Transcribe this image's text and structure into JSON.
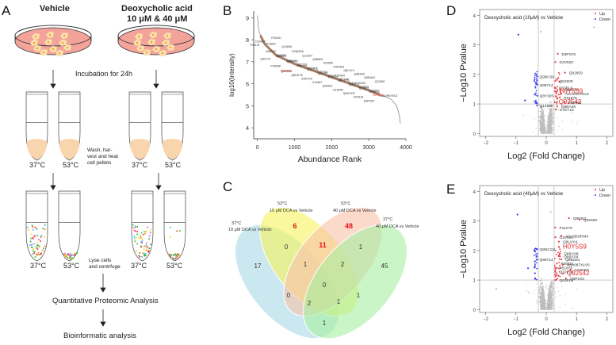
{
  "figure": {
    "panels": {
      "A": {
        "letter": "A",
        "vehicle_title": "Vehicle",
        "dca_title_line1": "Deoxycholic acid",
        "dca_title_line2": "10 μM & 40 μM",
        "step_incubation": "Incubation for 24h",
        "step_wash": [
          "Wash, har-",
          "vest and heat",
          "cell pellets"
        ],
        "step_lyse": [
          "Lyse cells",
          "and centrfuge"
        ],
        "temp_low": "37°C",
        "temp_high": "53°C",
        "step_quant": "Quantitative Proteomic Analysis",
        "step_bioinf": "Bioinformatic analysis"
      },
      "B": {
        "letter": "B"
      },
      "C": {
        "letter": "C"
      },
      "D": {
        "letter": "D"
      },
      "E": {
        "letter": "E"
      }
    }
  },
  "chart_data": [
    {
      "panel": "B",
      "type": "scatter",
      "title": "",
      "xlabel": "Abundance Rank",
      "ylabel": "log10(Intensity)",
      "xlim": [
        -100,
        4000
      ],
      "ylim": [
        3.5,
        9.3
      ],
      "xticks": [
        0,
        1000,
        2000,
        3000,
        4000
      ],
      "yticks": [
        4,
        5,
        6,
        7,
        8,
        9
      ],
      "curve": [
        [
          0,
          9.1
        ],
        [
          30,
          8.5
        ],
        [
          80,
          8.2
        ],
        [
          200,
          7.8
        ],
        [
          500,
          7.3
        ],
        [
          1000,
          6.9
        ],
        [
          1500,
          6.6
        ],
        [
          2000,
          6.3
        ],
        [
          2500,
          6.0
        ],
        [
          3000,
          5.7
        ],
        [
          3300,
          5.5
        ],
        [
          3600,
          5.3
        ],
        [
          3750,
          5.0
        ],
        [
          3820,
          4.6
        ],
        [
          3850,
          4.2
        ]
      ],
      "highlight_range": [
        50,
        3400
      ],
      "labels_black": [
        "P20101",
        "P13667",
        "O14867",
        "P33240",
        "Q99714",
        "Q16352",
        "Q96302",
        "Q14696",
        "P35368",
        "Q9BCC2",
        "Q93013",
        "E2QRD8",
        "Q9H0E8",
        "P35700",
        "Q96625",
        "Q13257",
        "Q8UEY8",
        "E7ET15",
        "Q9C009",
        "Q9B800",
        "E9PS76",
        "Q8IV36",
        "Q9C9L8",
        "O02859",
        "O14867",
        "P08110",
        "E9PG61",
        "O9P0E8",
        "Q93600",
        "H0YEP5",
        "A0A3B3IRM4",
        "Q8UJY4",
        "C9JDR0",
        "Q9NZJ9",
        "Q8VX48",
        "Q9BA49",
        "Q9WYF8",
        "Q00831",
        "A0A087X0N3",
        "Q9BU61",
        "O00118",
        "O43150",
        "Q13663",
        "Q13365",
        "Q9P305",
        "A0A2R8YEL6",
        "O15257"
      ],
      "labels_red": [
        "Q92542",
        "H0Y5S9"
      ]
    },
    {
      "panel": "C",
      "type": "venn",
      "sets": [
        {
          "name": "37°C 10 μM DCA vs Vehicle",
          "line1": "37°C",
          "line2": "10 μM DCA  vs Vehicle",
          "color": "#a9d8e6"
        },
        {
          "name": "53°C 10 μM DCA vs Vehicle",
          "line1": "53°C",
          "line2": "10 μM DCA  vs Vehicle",
          "color": "#f6f35a"
        },
        {
          "name": "53°C 40 μM DCA vs Vehicle",
          "line1": "53°C",
          "line2": "40 μM DCA  vs Vehicle",
          "color": "#f8c2a8"
        },
        {
          "name": "37°C 40 μM DCA vs Vehicle",
          "line1": "37°C",
          "line2": "40 μM DCA  vs Vehicle",
          "color": "#a6eea0"
        }
      ],
      "regions": [
        {
          "sets": [
            "37_10"
          ],
          "value": 17,
          "highlight": false
        },
        {
          "sets": [
            "53_10"
          ],
          "value": 6,
          "highlight": true
        },
        {
          "sets": [
            "53_40"
          ],
          "value": 48,
          "highlight": true
        },
        {
          "sets": [
            "37_40"
          ],
          "value": 45,
          "highlight": false
        },
        {
          "sets": [
            "37_10",
            "53_10"
          ],
          "value": 0,
          "highlight": false
        },
        {
          "sets": [
            "53_10",
            "53_40"
          ],
          "value": 11,
          "highlight": true
        },
        {
          "sets": [
            "53_40",
            "37_40"
          ],
          "value": 1,
          "highlight": false
        },
        {
          "sets": [
            "37_10",
            "53_10",
            "53_40"
          ],
          "value": 1,
          "highlight": false
        },
        {
          "sets": [
            "53_10",
            "53_40",
            "37_40"
          ],
          "value": 2,
          "highlight": false
        },
        {
          "sets": [
            "all"
          ],
          "value": 0,
          "highlight": false
        },
        {
          "sets": [
            "37_10",
            "53_40"
          ],
          "value": 0,
          "highlight": false
        },
        {
          "sets": [
            "53_10",
            "37_40"
          ],
          "value": 1,
          "highlight": false
        },
        {
          "sets": [
            "37_10",
            "53_40",
            "37_40"
          ],
          "value": 2,
          "highlight": false
        },
        {
          "sets": [
            "37_10",
            "53_10",
            "37_40"
          ],
          "value": 1,
          "highlight": false
        },
        {
          "sets": [
            "37_10",
            "37_40"
          ],
          "value": 1,
          "highlight": false
        }
      ],
      "highlight_color": "#e8141c"
    },
    {
      "panel": "D",
      "type": "scatter",
      "title": "Deoxycholic acid (10μM) vs Vehicle",
      "xlabel": "Log2 (Fold Change)",
      "ylabel": "−Log10 Pvalue",
      "xlim": [
        -2.2,
        2.2
      ],
      "ylim": [
        -0.1,
        4.2
      ],
      "xticks": [
        -2,
        -1,
        0,
        1,
        2
      ],
      "yticks": [
        0,
        1,
        2,
        3,
        4
      ],
      "thresholds": {
        "x": [
          -0.26,
          0.26
        ],
        "y": 1
      },
      "legend": [
        {
          "label": "Up",
          "color": "#e8363b"
        },
        {
          "label": "Down",
          "color": "#3b3bef"
        }
      ],
      "legend_position": "top-right",
      "annotated_points": [
        {
          "label": "E9PS76",
          "x": 0.38,
          "y": 2.7,
          "group": "up",
          "emph": false
        },
        {
          "label": "G3V502",
          "x": 0.3,
          "y": 2.42,
          "group": "up",
          "emph": false
        },
        {
          "label": "Q82859",
          "x": 0.62,
          "y": 2.06,
          "group": "up",
          "emph": false
        },
        {
          "label": "Q9BC09",
          "x": -0.3,
          "y": 1.93,
          "group": "down",
          "emph": false
        },
        {
          "label": "Q62600",
          "x": 0.3,
          "y": 1.78,
          "group": "up",
          "emph": false
        },
        {
          "label": "Q99714",
          "x": -0.3,
          "y": 1.65,
          "group": "down",
          "emph": false
        },
        {
          "label": "Q63EL6",
          "x": 0.28,
          "y": 1.55,
          "group": "up",
          "emph": false
        },
        {
          "label": "Q96S59",
          "x": 0.48,
          "y": 1.5,
          "group": "up",
          "emph": false
        },
        {
          "label": "H0Y5S9",
          "x": 0.3,
          "y": 1.42,
          "group": "up",
          "emph": true
        },
        {
          "label": "A0A2R8YEL6",
          "x": 0.5,
          "y": 1.35,
          "group": "up",
          "emph": false
        },
        {
          "label": "Q8Y305",
          "x": -0.3,
          "y": 1.28,
          "group": "down",
          "emph": false
        },
        {
          "label": "P51878",
          "x": 0.45,
          "y": 1.22,
          "group": "up",
          "emph": false
        },
        {
          "label": "Q92542",
          "x": 0.28,
          "y": 1.06,
          "group": "up",
          "emph": true
        },
        {
          "label": "P50750",
          "x": 0.6,
          "y": 1.05,
          "group": "up",
          "emph": false
        },
        {
          "label": "Q14696",
          "x": -0.3,
          "y": 0.95,
          "group": "down",
          "emph": false
        },
        {
          "label": "Q8BA49",
          "x": 0.36,
          "y": 0.92,
          "group": "up",
          "emph": false
        },
        {
          "label": "E7ET15",
          "x": 0.32,
          "y": 0.82,
          "group": "up",
          "emph": false
        }
      ],
      "notable_points": [
        {
          "x": -0.92,
          "y": 3.35,
          "group": "down"
        },
        {
          "x": -0.7,
          "y": 1.12,
          "group": "down"
        },
        {
          "x": -0.18,
          "y": 3.45,
          "group": "ns"
        },
        {
          "x": 1.58,
          "y": 3.6,
          "group": "ns"
        }
      ]
    },
    {
      "panel": "E",
      "type": "scatter",
      "title": "Deoxycholic acid (40μM) vs Vehicle",
      "xlabel": "Log2 (Fold Change)",
      "ylabel": "−Log10 Pvalue",
      "xlim": [
        -2.2,
        2.2
      ],
      "ylim": [
        -0.1,
        4.2
      ],
      "xticks": [
        -2,
        -1,
        0,
        1,
        2
      ],
      "yticks": [
        0,
        1,
        2,
        3,
        4
      ],
      "thresholds": {
        "x": [
          -0.26,
          0.26
        ],
        "y": 1
      },
      "legend": [
        {
          "label": "Up",
          "color": "#e8363b"
        },
        {
          "label": "Down",
          "color": "#3b3bef"
        }
      ],
      "legend_position": "top-right",
      "annotated_points": [
        {
          "label": "Q96302",
          "x": 0.75,
          "y": 3.1,
          "group": "up",
          "emph": false
        },
        {
          "label": "Q92600",
          "x": 1.1,
          "y": 3.05,
          "group": "up",
          "emph": false
        },
        {
          "label": "P11279",
          "x": 0.3,
          "y": 2.78,
          "group": "up",
          "emph": false
        },
        {
          "label": "A0A3B3IRM4",
          "x": 0.5,
          "y": 2.5,
          "group": "up",
          "emph": false
        },
        {
          "label": "G3V502",
          "x": 0.3,
          "y": 2.45,
          "group": "up",
          "emph": false
        },
        {
          "label": "Q8UJY4",
          "x": 0.42,
          "y": 2.3,
          "group": "up",
          "emph": false
        },
        {
          "label": "Q8NCQ2",
          "x": -0.3,
          "y": 2.05,
          "group": "down",
          "emph": false
        },
        {
          "label": "H0Y5S9",
          "x": 0.42,
          "y": 2.12,
          "group": "up",
          "emph": true
        },
        {
          "label": "Q86VH8",
          "x": 0.45,
          "y": 1.9,
          "group": "up",
          "emph": false
        },
        {
          "label": "Q86YP4",
          "x": 0.45,
          "y": 1.8,
          "group": "up",
          "emph": false
        },
        {
          "label": "Q99714",
          "x": -0.3,
          "y": 1.7,
          "group": "down",
          "emph": false
        },
        {
          "label": "Q9BU61",
          "x": 0.5,
          "y": 1.7,
          "group": "up",
          "emph": false
        },
        {
          "label": "P46821",
          "x": 0.35,
          "y": 1.56,
          "group": "up",
          "emph": false
        },
        {
          "label": "A0A087X1V5",
          "x": 0.55,
          "y": 1.52,
          "group": "up",
          "emph": false
        },
        {
          "label": "P51878",
          "x": 0.3,
          "y": 1.42,
          "group": "up",
          "emph": false
        },
        {
          "label": "C9JDR0",
          "x": 0.8,
          "y": 1.35,
          "group": "up",
          "emph": false
        },
        {
          "label": "Q32P28",
          "x": 0.3,
          "y": 1.28,
          "group": "up",
          "emph": false
        },
        {
          "label": "Q92542",
          "x": 0.55,
          "y": 1.22,
          "group": "up",
          "emph": true
        },
        {
          "label": "Q9P2X3",
          "x": 0.65,
          "y": 1.05,
          "group": "up",
          "emph": false
        },
        {
          "label": "Q63EL6",
          "x": 0.3,
          "y": 1.0,
          "group": "up",
          "emph": false
        }
      ],
      "notable_points": [
        {
          "x": -0.95,
          "y": 3.22,
          "group": "down"
        },
        {
          "x": -0.6,
          "y": 1.4,
          "group": "down"
        },
        {
          "x": 0.15,
          "y": 3.3,
          "group": "ns"
        },
        {
          "x": -1.65,
          "y": 0.7,
          "group": "ns"
        }
      ]
    }
  ]
}
